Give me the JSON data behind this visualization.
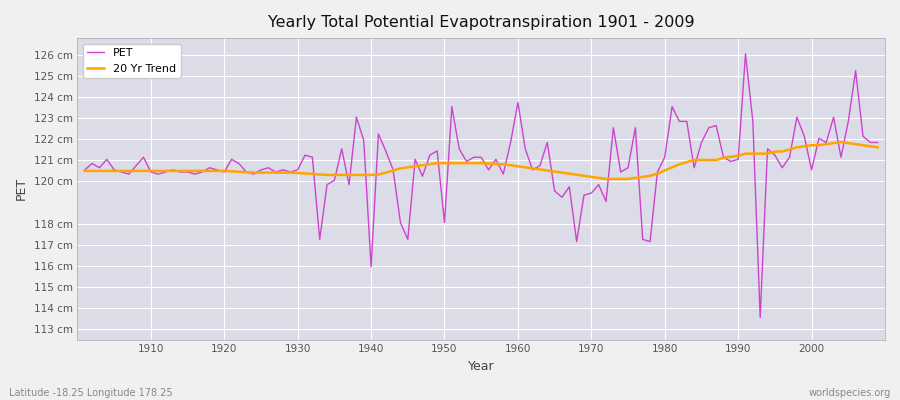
{
  "title": "Yearly Total Potential Evapotranspiration 1901 - 2009",
  "ylabel": "PET",
  "xlabel": "Year",
  "subtitle_left": "Latitude -18.25 Longitude 178.25",
  "subtitle_right": "worldspecies.org",
  "pet_line_color": "#CC44CC",
  "trend_line_color": "#FFA500",
  "fig_bg_color": "#F0F0F0",
  "plot_bg_color": "#DCDCE8",
  "grid_color": "#FFFFFF",
  "ylim": [
    112.5,
    126.8
  ],
  "yticks": [
    113,
    114,
    115,
    116,
    117,
    118,
    120,
    121,
    122,
    123,
    124,
    125,
    126
  ],
  "xlim": [
    1900,
    2010
  ],
  "xticks": [
    1910,
    1920,
    1930,
    1940,
    1950,
    1960,
    1970,
    1980,
    1990,
    2000
  ],
  "years": [
    1901,
    1902,
    1903,
    1904,
    1905,
    1906,
    1907,
    1908,
    1909,
    1910,
    1911,
    1912,
    1913,
    1914,
    1915,
    1916,
    1917,
    1918,
    1919,
    1920,
    1921,
    1922,
    1923,
    1924,
    1925,
    1926,
    1927,
    1928,
    1929,
    1930,
    1931,
    1932,
    1933,
    1934,
    1935,
    1936,
    1937,
    1938,
    1939,
    1940,
    1941,
    1942,
    1943,
    1944,
    1945,
    1946,
    1947,
    1948,
    1949,
    1950,
    1951,
    1952,
    1953,
    1954,
    1955,
    1956,
    1957,
    1958,
    1959,
    1960,
    1961,
    1962,
    1963,
    1964,
    1965,
    1966,
    1967,
    1968,
    1969,
    1970,
    1971,
    1972,
    1973,
    1974,
    1975,
    1976,
    1977,
    1978,
    1979,
    1980,
    1981,
    1982,
    1983,
    1984,
    1985,
    1986,
    1987,
    1988,
    1989,
    1990,
    1991,
    1992,
    1993,
    1994,
    1995,
    1996,
    1997,
    1998,
    1999,
    2000,
    2001,
    2002,
    2003,
    2004,
    2005,
    2006,
    2007,
    2008,
    2009
  ],
  "pet_values": [
    120.55,
    120.85,
    120.65,
    121.05,
    120.55,
    120.45,
    120.35,
    120.75,
    121.15,
    120.45,
    120.35,
    120.45,
    120.55,
    120.45,
    120.45,
    120.35,
    120.45,
    120.65,
    120.55,
    120.45,
    121.05,
    120.85,
    120.45,
    120.35,
    120.55,
    120.65,
    120.45,
    120.55,
    120.45,
    120.55,
    121.25,
    121.15,
    117.25,
    119.85,
    120.05,
    121.55,
    119.85,
    123.05,
    121.95,
    115.95,
    122.25,
    121.45,
    120.55,
    118.05,
    117.25,
    121.05,
    120.25,
    121.25,
    121.45,
    118.05,
    123.55,
    121.55,
    120.95,
    121.15,
    121.15,
    120.55,
    121.05,
    120.35,
    121.85,
    123.75,
    121.55,
    120.55,
    120.75,
    121.85,
    119.55,
    119.25,
    119.75,
    117.15,
    119.35,
    119.45,
    119.85,
    119.05,
    122.55,
    120.45,
    120.65,
    122.55,
    117.25,
    117.15,
    120.45,
    121.15,
    123.55,
    122.85,
    122.85,
    120.65,
    121.85,
    122.55,
    122.65,
    121.15,
    120.95,
    121.05,
    126.05,
    122.85,
    113.55,
    121.55,
    121.25,
    120.65,
    121.15,
    123.05,
    122.15,
    120.55,
    122.05,
    121.85,
    123.05,
    121.15,
    122.85,
    125.25,
    122.15,
    121.85,
    121.85
  ],
  "trend_values": [
    120.5,
    120.5,
    120.5,
    120.5,
    120.5,
    120.5,
    120.5,
    120.5,
    120.5,
    120.5,
    120.5,
    120.5,
    120.5,
    120.5,
    120.5,
    120.5,
    120.5,
    120.5,
    120.5,
    120.5,
    120.48,
    120.46,
    120.44,
    120.42,
    120.42,
    120.42,
    120.42,
    120.42,
    120.42,
    120.4,
    120.38,
    120.36,
    120.33,
    120.31,
    120.31,
    120.31,
    120.31,
    120.31,
    120.31,
    120.31,
    120.33,
    120.42,
    120.52,
    120.62,
    120.67,
    120.72,
    120.77,
    120.82,
    120.87,
    120.87,
    120.87,
    120.87,
    120.87,
    120.87,
    120.87,
    120.85,
    120.83,
    120.81,
    120.77,
    120.72,
    120.67,
    120.62,
    120.57,
    120.52,
    120.47,
    120.42,
    120.37,
    120.32,
    120.27,
    120.22,
    120.17,
    120.12,
    120.12,
    120.12,
    120.12,
    120.17,
    120.22,
    120.27,
    120.37,
    120.52,
    120.67,
    120.82,
    120.92,
    121.02,
    121.02,
    121.02,
    121.02,
    121.12,
    121.17,
    121.22,
    121.32,
    121.32,
    121.32,
    121.32,
    121.42,
    121.42,
    121.52,
    121.62,
    121.67,
    121.72,
    121.72,
    121.77,
    121.82,
    121.87,
    121.82,
    121.77,
    121.72,
    121.67,
    121.62
  ]
}
